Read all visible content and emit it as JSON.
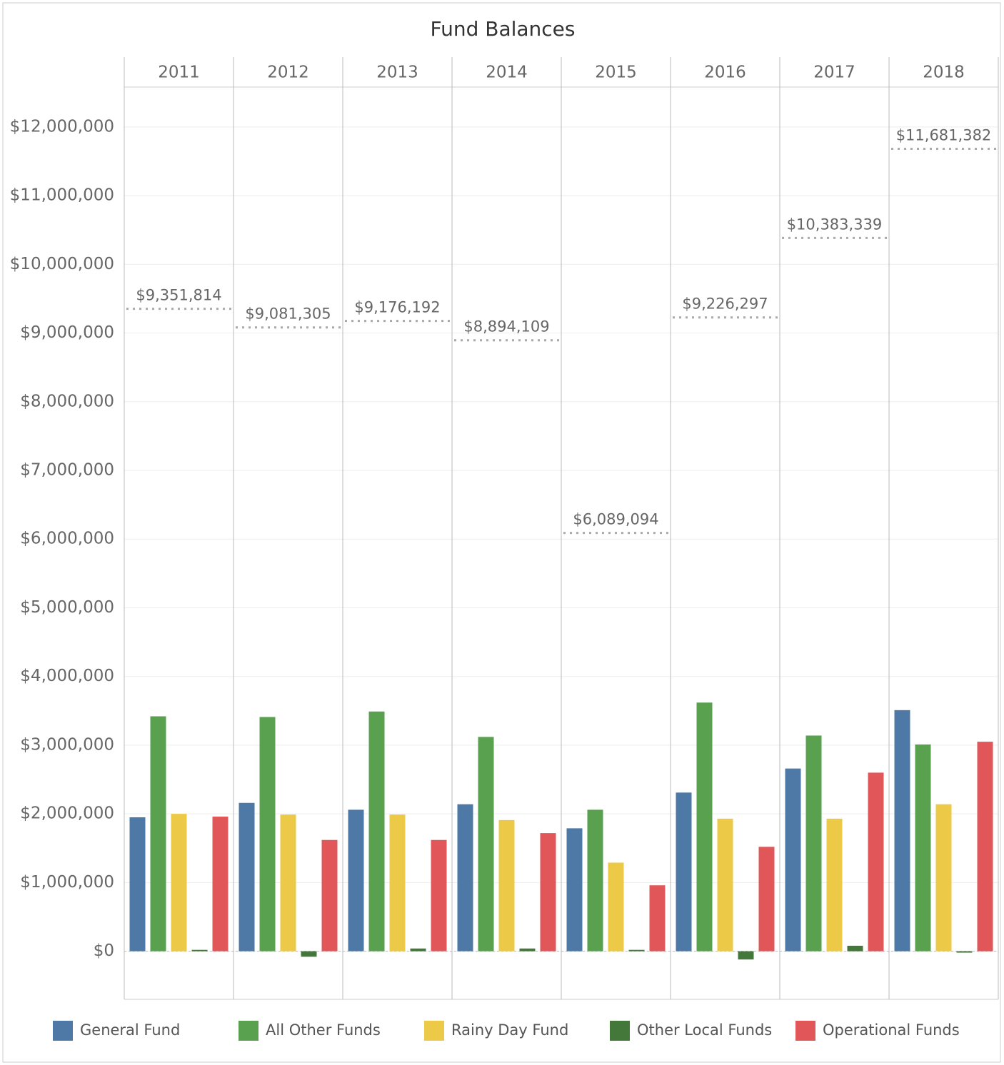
{
  "chart_data": {
    "type": "bar",
    "title": "Fund Balances",
    "categories": [
      "2011",
      "2012",
      "2013",
      "2014",
      "2015",
      "2016",
      "2017",
      "2018"
    ],
    "series": [
      {
        "name": "General Fund",
        "color": "#4e79a7",
        "values": [
          1950000,
          2160000,
          2060000,
          2140000,
          1790000,
          2310000,
          2660000,
          3510000
        ]
      },
      {
        "name": "All Other Funds",
        "color": "#59a14f",
        "values": [
          3420000,
          3410000,
          3490000,
          3120000,
          2060000,
          3620000,
          3140000,
          3010000
        ]
      },
      {
        "name": "Rainy Day Fund",
        "color": "#edc948",
        "values": [
          2000000,
          1990000,
          1990000,
          1910000,
          1290000,
          1930000,
          1930000,
          2140000
        ]
      },
      {
        "name": "Other Local Funds",
        "color": "#44783a",
        "values": [
          20000,
          -80000,
          40000,
          40000,
          20000,
          -120000,
          80000,
          -20000
        ]
      },
      {
        "name": "Operational Funds",
        "color": "#e15759",
        "values": [
          1960000,
          1620000,
          1620000,
          1720000,
          960000,
          1520000,
          2600000,
          3050000
        ]
      }
    ],
    "totals": {
      "values": [
        9351814,
        9081305,
        9176192,
        8894109,
        6089094,
        9226297,
        10383339,
        11681382
      ],
      "value_labels": [
        "$9,351,814",
        "$9,081,305",
        "$9,176,192",
        "$8,894,109",
        "$6,089,094",
        "$9,226,297",
        "$10,383,339",
        "$11,681,382"
      ]
    },
    "ylim": [
      -700000,
      12580000
    ],
    "yticks": [
      {
        "value": 0,
        "label": "$0"
      },
      {
        "value": 1000000,
        "label": "$1,000,000"
      },
      {
        "value": 2000000,
        "label": "$2,000,000"
      },
      {
        "value": 3000000,
        "label": "$3,000,000"
      },
      {
        "value": 4000000,
        "label": "$4,000,000"
      },
      {
        "value": 5000000,
        "label": "$5,000,000"
      },
      {
        "value": 6000000,
        "label": "$6,000,000"
      },
      {
        "value": 7000000,
        "label": "$7,000,000"
      },
      {
        "value": 8000000,
        "label": "$8,000,000"
      },
      {
        "value": 9000000,
        "label": "$9,000,000"
      },
      {
        "value": 10000000,
        "label": "$10,000,000"
      },
      {
        "value": 11000000,
        "label": "$11,000,000"
      },
      {
        "value": 12000000,
        "label": "$12,000,000"
      }
    ],
    "grid": true,
    "legend": "bottom"
  }
}
